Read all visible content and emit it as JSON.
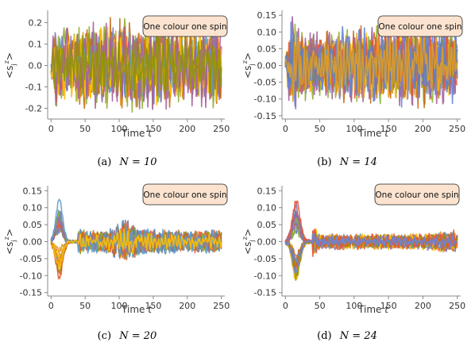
{
  "chart_data": [
    {
      "type": "line",
      "panel": "a",
      "caption": "(a) N = 10",
      "caption_label": "(a)",
      "caption_math": "N = 10",
      "xlabel": "Time t",
      "ylabel": "<s_j^z>",
      "legend_text": "One colour one spin",
      "xlim": [
        -5,
        255
      ],
      "ylim": [
        -0.25,
        0.25
      ],
      "x_ticks": [
        0,
        50,
        100,
        150,
        200,
        250
      ],
      "y_ticks": [
        -0.2,
        -0.1,
        0.0,
        0.1,
        0.2
      ],
      "y_tick_labels": [
        "-0.2",
        "-0.1",
        "0.0",
        "0.1",
        "0.2"
      ],
      "n_series": 10,
      "envelope": [
        [
          0,
          0.05
        ],
        [
          5,
          0.15
        ],
        [
          25,
          0.15
        ],
        [
          50,
          0.16
        ],
        [
          100,
          0.18
        ],
        [
          150,
          0.17
        ],
        [
          200,
          0.16
        ],
        [
          250,
          0.16
        ]
      ]
    },
    {
      "type": "line",
      "panel": "b",
      "caption": "(b) N = 14",
      "caption_label": "(b)",
      "caption_math": "N = 14",
      "xlabel": "Time t",
      "ylabel": "<s_j^z>",
      "legend_text": "One colour one spin",
      "xlim": [
        -5,
        255
      ],
      "ylim": [
        -0.16,
        0.16
      ],
      "x_ticks": [
        0,
        50,
        100,
        150,
        200,
        250
      ],
      "y_ticks": [
        -0.15,
        -0.1,
        -0.05,
        0.0,
        0.05,
        0.1,
        0.15
      ],
      "y_tick_labels": [
        "-0.15",
        "-0.10",
        "-0.05",
        "0.00",
        "0.05",
        "0.10",
        "0.15"
      ],
      "n_series": 14,
      "envelope": [
        [
          0,
          0.03
        ],
        [
          8,
          0.15
        ],
        [
          20,
          0.1
        ],
        [
          50,
          0.09
        ],
        [
          100,
          0.11
        ],
        [
          150,
          0.11
        ],
        [
          200,
          0.12
        ],
        [
          250,
          0.1
        ]
      ]
    },
    {
      "type": "line",
      "panel": "c",
      "caption": "(c) N = 20",
      "caption_label": "(c)",
      "caption_math": "N = 20",
      "xlabel": "Time t",
      "ylabel": "<s_j^z>",
      "legend_text": "One colour one spin",
      "xlim": [
        -5,
        255
      ],
      "ylim": [
        -0.16,
        0.16
      ],
      "x_ticks": [
        0,
        50,
        100,
        150,
        200,
        250
      ],
      "y_ticks": [
        -0.15,
        -0.1,
        -0.05,
        0.0,
        0.05,
        0.1,
        0.15
      ],
      "y_tick_labels": [
        "-0.15",
        "-0.10",
        "-0.05",
        "0.00",
        "0.05",
        "0.10",
        "0.15"
      ],
      "n_series": 20,
      "envelope": [
        [
          0,
          0.05
        ],
        [
          12,
          0.15
        ],
        [
          25,
          0.04
        ],
        [
          50,
          0.03
        ],
        [
          80,
          0.03
        ],
        [
          100,
          0.05
        ],
        [
          110,
          0.06
        ],
        [
          130,
          0.035
        ],
        [
          200,
          0.03
        ],
        [
          250,
          0.03
        ]
      ]
    },
    {
      "type": "line",
      "panel": "d",
      "caption": "(d) N = 24",
      "caption_label": "(d)",
      "caption_math": "N = 24",
      "xlabel": "Time t",
      "ylabel": "<s_j^z>",
      "legend_text": "One colour one spin",
      "xlim": [
        -5,
        255
      ],
      "ylim": [
        -0.16,
        0.16
      ],
      "x_ticks": [
        0,
        50,
        100,
        150,
        200,
        250
      ],
      "y_ticks": [
        -0.15,
        -0.1,
        -0.05,
        0.0,
        0.05,
        0.1,
        0.15
      ],
      "y_tick_labels": [
        "-0.15",
        "-0.10",
        "-0.05",
        "0.00",
        "0.05",
        "0.10",
        "0.15"
      ],
      "n_series": 24,
      "envelope": [
        [
          0,
          0.06
        ],
        [
          15,
          0.15
        ],
        [
          30,
          0.06
        ],
        [
          50,
          0.02
        ],
        [
          100,
          0.02
        ],
        [
          150,
          0.02
        ],
        [
          200,
          0.02
        ],
        [
          245,
          0.03
        ],
        [
          250,
          0.02
        ]
      ]
    }
  ],
  "colors": [
    "#5e81b5",
    "#e19c24",
    "#8fb032",
    "#eb6235",
    "#8778b3",
    "#c56e1a",
    "#5d9ec7",
    "#ffbf00",
    "#a5609d",
    "#929600",
    "#e95536",
    "#6685d9"
  ],
  "legend_fill": "#fbe3cf",
  "legend_stroke": "#222222"
}
